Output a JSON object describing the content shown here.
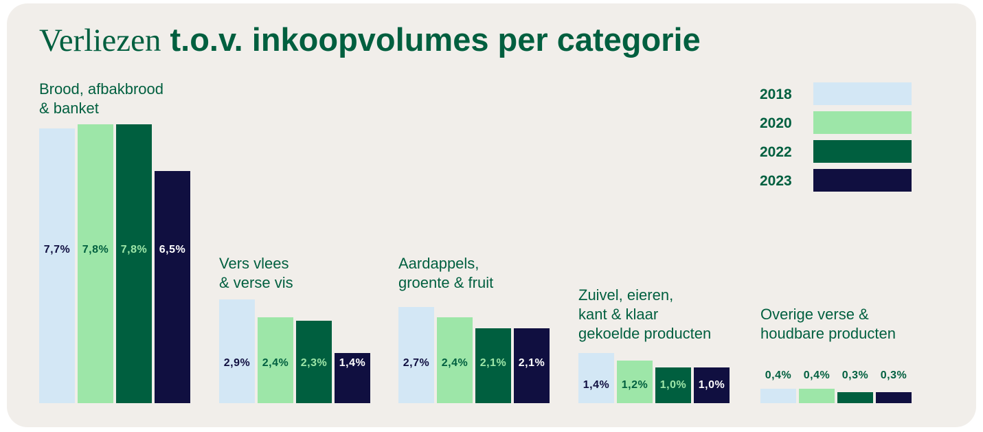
{
  "title": {
    "light": "Verliezen",
    "bold": "t.o.v. inkoopvolumes per categorie"
  },
  "chart_data": {
    "type": "bar",
    "title": "Verliezen t.o.v. inkoopvolumes per categorie",
    "xlabel": "",
    "ylabel": "",
    "ylim": [
      0,
      8
    ],
    "grid": false,
    "legend": "top-right",
    "categories": [
      "Brood, afbakbrood\n& banket",
      "Vers vlees\n& verse vis",
      "Aardappels,\ngroente & fruit",
      "Zuivel, eieren,\nkant & klaar\ngekoelde producten",
      "Overige verse &\nhoudbare producten"
    ],
    "series": [
      {
        "name": "2018",
        "color": "#d3e7f5",
        "values": [
          7.7,
          2.9,
          2.7,
          1.4,
          0.4
        ],
        "labels": [
          "7,7%",
          "2,9%",
          "2,7%",
          "1,4%",
          "0,4%"
        ]
      },
      {
        "name": "2020",
        "color": "#9de6a8",
        "values": [
          7.8,
          2.4,
          2.4,
          1.2,
          0.4
        ],
        "labels": [
          "7,8%",
          "2,4%",
          "2,4%",
          "1,2%",
          "0,4%"
        ]
      },
      {
        "name": "2022",
        "color": "#005f3f",
        "values": [
          7.8,
          2.3,
          2.1,
          1.0,
          0.3
        ],
        "labels": [
          "7,8%",
          "2,3%",
          "2,1%",
          "1,0%",
          "0,3%"
        ]
      },
      {
        "name": "2023",
        "color": "#100f40",
        "values": [
          6.5,
          1.4,
          2.1,
          1.0,
          0.3
        ],
        "labels": [
          "6,5%",
          "1,4%",
          "2,1%",
          "1,0%",
          "0,3%"
        ]
      }
    ]
  }
}
